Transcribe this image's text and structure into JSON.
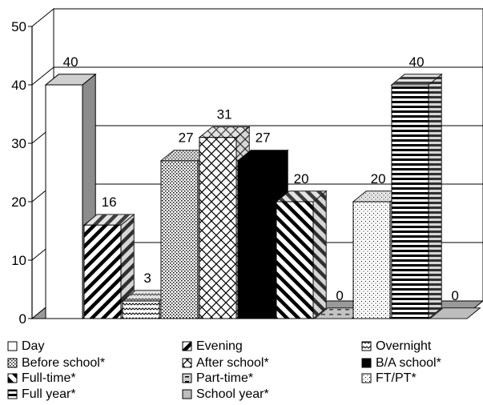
{
  "chart_data": {
    "type": "bar",
    "title": "",
    "xlabel": "",
    "ylabel": "",
    "ylim": [
      0,
      50
    ],
    "yticks": [
      0,
      10,
      20,
      30,
      40,
      50
    ],
    "grid": true,
    "legend_position": "bottom",
    "three_d": true,
    "series": [
      {
        "name": "Day",
        "values": [
          40
        ],
        "label": "40",
        "pattern": "white"
      },
      {
        "name": "Evening",
        "values": [
          16
        ],
        "label": "16",
        "pattern": "diag-down"
      },
      {
        "name": "Overnight",
        "values": [
          3
        ],
        "label": "3",
        "pattern": "wave"
      },
      {
        "name": "Before school*",
        "values": [
          27
        ],
        "label": "27",
        "pattern": "dots-dense"
      },
      {
        "name": "After school*",
        "values": [
          31
        ],
        "label": "31",
        "pattern": "diamond"
      },
      {
        "name": "B/A school*",
        "values": [
          27
        ],
        "label": "27",
        "pattern": "black"
      },
      {
        "name": "Full-time*",
        "values": [
          20
        ],
        "label": "20",
        "pattern": "diag-up"
      },
      {
        "name": "Part-time*",
        "values": [
          0
        ],
        "label": "0",
        "pattern": "dash"
      },
      {
        "name": "FT/PT*",
        "values": [
          20
        ],
        "label": "20",
        "pattern": "dots-sparse"
      },
      {
        "name": "Full year*",
        "values": [
          40
        ],
        "label": "40",
        "pattern": "hlines"
      },
      {
        "name": "School year*",
        "values": [
          0
        ],
        "label": "0",
        "pattern": "gray"
      }
    ]
  }
}
